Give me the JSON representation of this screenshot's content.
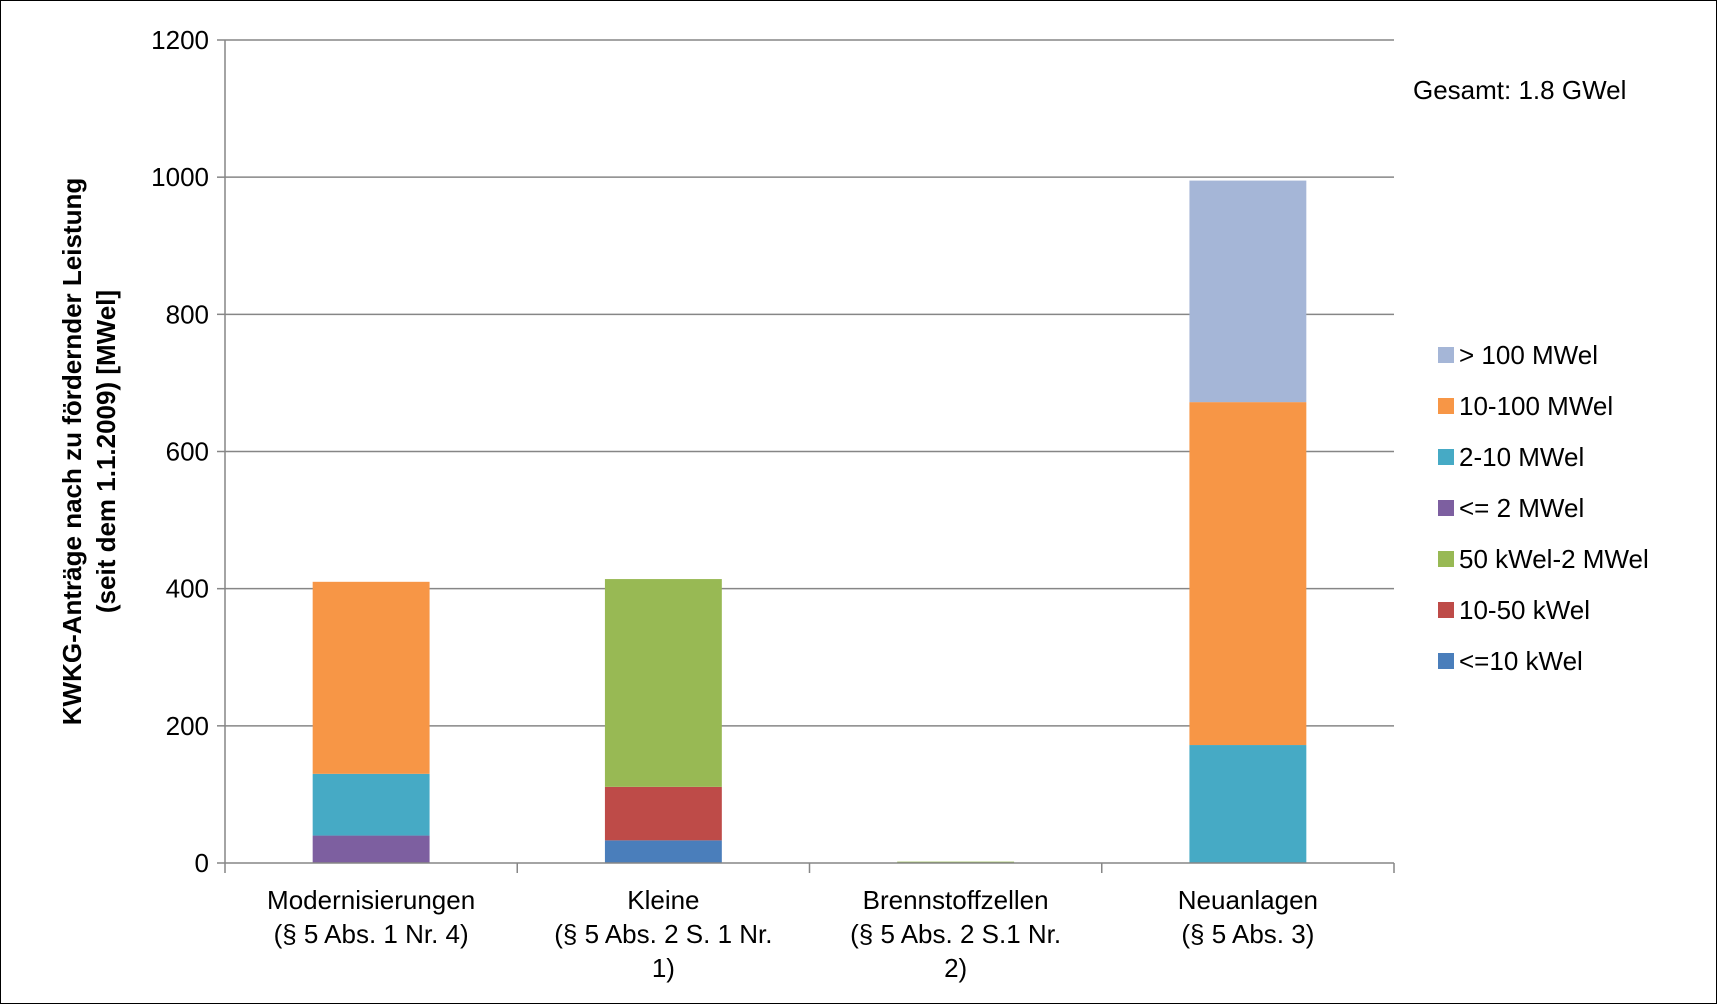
{
  "chart_data": {
    "type": "bar",
    "stacked": true,
    "categories": [
      [
        "Modernisierungen",
        "(§ 5 Abs. 1 Nr. 4)"
      ],
      [
        "Kleine",
        "(§ 5 Abs. 2 S. 1 Nr.",
        "1)"
      ],
      [
        "Brennstoffzellen",
        "(§ 5 Abs. 2 S.1 Nr.",
        "2)"
      ],
      [
        "Neuanlagen",
        "(§ 5 Abs. 3)"
      ]
    ],
    "series": [
      {
        "name": "<=10 kWel",
        "color": "#4a7ebb",
        "values": [
          0,
          33,
          0,
          0
        ]
      },
      {
        "name": "10-50 kWel",
        "color": "#be4b48",
        "values": [
          0,
          78,
          0,
          0
        ]
      },
      {
        "name": "50 kWel-2 MWel",
        "color": "#98b954",
        "values": [
          0,
          303,
          2,
          0
        ]
      },
      {
        "name": "<= 2 MWel",
        "color": "#7d5fa0",
        "values": [
          40,
          0,
          0,
          0
        ]
      },
      {
        "name": "2-10 MWel",
        "color": "#46aac5",
        "values": [
          90,
          0,
          0,
          172
        ]
      },
      {
        "name": "10-100 MWel",
        "color": "#f79646",
        "values": [
          280,
          0,
          0,
          500
        ]
      },
      {
        "name": "> 100 MWel",
        "color": "#a5b6d7",
        "values": [
          0,
          0,
          0,
          323
        ]
      }
    ],
    "ylabel_lines": [
      "KWKG-Anträge nach zu fördernder  Leistung",
      "(seit dem 1.1.2009)  [MWel]"
    ],
    "ylim": [
      0,
      1200
    ],
    "yticks": [
      0,
      200,
      400,
      600,
      800,
      1000,
      1200
    ],
    "grid": true,
    "legend_position": "right",
    "legend_order": [
      "> 100 MWel",
      "10-100 MWel",
      "2-10 MWel",
      "<= 2 MWel",
      "50 kWel-2 MWel",
      "10-50 kWel",
      "<=10 kWel"
    ],
    "annotation": "Gesamt: 1.8 GWel"
  }
}
